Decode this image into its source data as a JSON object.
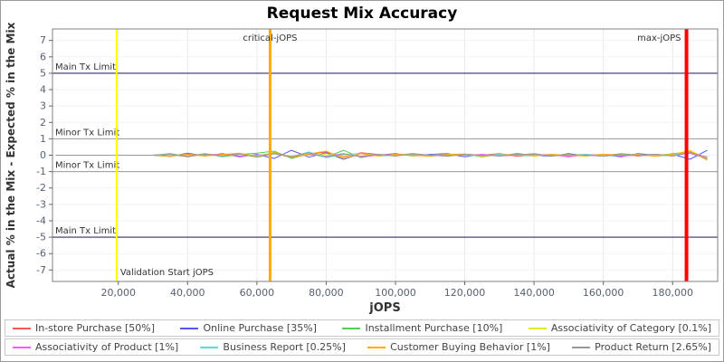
{
  "title": "Request Mix Accuracy",
  "chart_data": {
    "type": "line",
    "title": "Request Mix Accuracy",
    "xlabel": "jOPS",
    "ylabel": "Actual % in the Mix - Expected % in the Mix",
    "xlim": [
      1000,
      193000
    ],
    "ylim": [
      -7.7,
      7.7
    ],
    "x_ticks": [
      20000,
      40000,
      60000,
      80000,
      100000,
      120000,
      140000,
      160000,
      180000
    ],
    "y_ticks": [
      -7,
      -6,
      -5,
      -4,
      -3,
      -2,
      -1,
      0,
      1,
      2,
      3,
      4,
      5,
      6,
      7
    ],
    "grid": "faint",
    "legend_position": "bottom",
    "x": [
      2000,
      6000,
      10000,
      15000,
      20000,
      25000,
      30000,
      35000,
      40000,
      45000,
      50000,
      55000,
      60000,
      65000,
      70000,
      75000,
      80000,
      85000,
      90000,
      95000,
      100000,
      105000,
      110000,
      115000,
      120000,
      125000,
      130000,
      135000,
      140000,
      145000,
      150000,
      155000,
      160000,
      165000,
      170000,
      175000,
      180000,
      185000,
      190000
    ],
    "series": [
      {
        "name": "In-store Purchase [50%]",
        "color": "#ff5555",
        "values": [
          0,
          0,
          0,
          0,
          0,
          0,
          0,
          0.05,
          -0.1,
          0.08,
          0,
          0.1,
          -0.07,
          0.12,
          -0.15,
          0.05,
          0.2,
          -0.1,
          0.15,
          0.05,
          -0.05,
          0.1,
          0,
          -0.05,
          0.06,
          0,
          0.1,
          -0.06,
          0,
          0.05,
          -0.1,
          0.05,
          0,
          0.08,
          -0.05,
          0.05,
          0,
          0.12,
          -0.2
        ]
      },
      {
        "name": "Online Purchase [35%]",
        "color": "#5555ff",
        "values": [
          0,
          0,
          0,
          0,
          0,
          0,
          0,
          -0.08,
          0.12,
          -0.05,
          0.1,
          -0.1,
          0.05,
          -0.2,
          0.3,
          -0.12,
          0.15,
          -0.25,
          0.1,
          0,
          0.1,
          -0.06,
          0.05,
          0.1,
          -0.1,
          0.05,
          -0.05,
          0.1,
          0,
          -0.06,
          0.1,
          -0.05,
          0.05,
          -0.1,
          0.1,
          0,
          0.06,
          -0.25,
          0.3
        ]
      },
      {
        "name": "Installment Purchase [10%]",
        "color": "#55cc55",
        "values": [
          0,
          0,
          0,
          0,
          0,
          0,
          0,
          0.1,
          -0.06,
          0.1,
          -0.1,
          0.05,
          0.12,
          0.25,
          -0.2,
          0.1,
          -0.12,
          0.3,
          -0.15,
          0.05,
          0,
          0.1,
          -0.05,
          0,
          0.06,
          -0.1,
          0.05,
          0,
          0.1,
          -0.05,
          0,
          0.05,
          -0.06,
          0.1,
          0,
          -0.05,
          0.1,
          0.2,
          -0.15
        ]
      },
      {
        "name": "Associativity of Category [0.1%]",
        "color": "#e8e822",
        "values": [
          0,
          0,
          0,
          0,
          0,
          0,
          0,
          0.04,
          0,
          -0.04,
          0,
          0.05,
          0,
          0.08,
          -0.05,
          0,
          0.05,
          -0.04,
          0.1,
          0,
          0.04,
          -0.05,
          0,
          0.05,
          0,
          -0.04,
          0,
          0.04,
          0,
          0,
          0.05,
          -0.04,
          0,
          0.04,
          0,
          0,
          0.05,
          0.3,
          -0.2
        ]
      },
      {
        "name": "Associativity of Product [1%]",
        "color": "#ff55ff",
        "values": [
          0,
          0,
          0,
          0,
          0,
          0,
          0,
          -0.05,
          0.05,
          0,
          0.06,
          -0.05,
          0,
          0.1,
          -0.1,
          0.05,
          -0.06,
          0.1,
          -0.1,
          0,
          0.05,
          0,
          -0.05,
          0.06,
          0,
          0.05,
          -0.05,
          0,
          0.05,
          0,
          -0.06,
          0,
          0.05,
          -0.05,
          0,
          0.05,
          -0.05,
          0.15,
          -0.1
        ]
      },
      {
        "name": "Business Report [0.25%]",
        "color": "#55dddd",
        "values": [
          0,
          0,
          0,
          0,
          0,
          0,
          0,
          0.06,
          -0.05,
          0.05,
          -0.06,
          0.08,
          -0.05,
          0.15,
          -0.1,
          0.2,
          -0.15,
          0.05,
          0.1,
          -0.05,
          0,
          0.06,
          -0.05,
          0.05,
          0,
          -0.05,
          0.06,
          0,
          -0.05,
          0.05,
          0,
          0.05,
          -0.05,
          0,
          0.06,
          -0.05,
          0,
          0.2,
          -0.25
        ]
      },
      {
        "name": "Customer Buying Behavior [1%]",
        "color": "#ffaa00",
        "values": [
          0,
          0,
          0,
          0,
          0,
          0,
          0,
          -0.06,
          0.08,
          -0.05,
          0.05,
          0.12,
          -0.1,
          0.18,
          -0.12,
          0.08,
          0.25,
          -0.2,
          0.1,
          -0.05,
          0.06,
          0,
          -0.06,
          0.05,
          0.08,
          -0.05,
          0,
          0.06,
          -0.05,
          0.05,
          0,
          -0.05,
          0.06,
          0,
          0.05,
          -0.06,
          0.05,
          0.25,
          -0.3
        ]
      },
      {
        "name": "Product Return [2.65%]",
        "color": "#999999",
        "values": [
          0,
          0,
          0,
          0,
          0,
          0,
          0,
          0.05,
          -0.08,
          0.06,
          -0.05,
          0.08,
          -0.12,
          0.1,
          -0.08,
          0.15,
          -0.1,
          0.08,
          -0.06,
          0.05,
          -0.05,
          0.08,
          0,
          -0.06,
          0.05,
          0,
          -0.05,
          0.05,
          0.06,
          -0.05,
          0.05,
          0,
          -0.06,
          0.05,
          0,
          0.06,
          -0.05,
          0.18,
          -0.22
        ]
      }
    ],
    "hlines": [
      {
        "y": 5,
        "label": "Main Tx Limit",
        "color": "#333366",
        "width": 1.2
      },
      {
        "y": 1,
        "label": "Minor Tx Limit",
        "color": "#999999",
        "width": 1
      },
      {
        "y": -1,
        "label": "Minor Tx Limit",
        "color": "#999999",
        "width": 1
      },
      {
        "y": -5,
        "label": "Main Tx Limit",
        "color": "#333366",
        "width": 1.2
      }
    ],
    "vlines": [
      {
        "x": 19500,
        "label": "Validation Start jOPS",
        "color": "#ffff00",
        "width": 2,
        "label_pos": "bottom-right"
      },
      {
        "x": 63800,
        "label": "critical-jOPS",
        "color": "#ffaa00",
        "width": 3,
        "label_pos": "top-center"
      },
      {
        "x": 184000,
        "label": "max-jOPS",
        "color": "#ff0000",
        "width": 4,
        "label_pos": "top-left"
      }
    ]
  },
  "legend": {
    "rows": [
      [
        {
          "label": "In-store Purchase [50%]",
          "color": "#ff5555"
        },
        {
          "label": "Online Purchase [35%]",
          "color": "#5555ff"
        },
        {
          "label": "Installment Purchase [10%]",
          "color": "#55cc55"
        },
        {
          "label": "Associativity of Category [0.1%]",
          "color": "#e8e822"
        }
      ],
      [
        {
          "label": "Associativity of Product [1%]",
          "color": "#ff55ff"
        },
        {
          "label": "Business Report [0.25%]",
          "color": "#55dddd"
        },
        {
          "label": "Customer Buying Behavior [1%]",
          "color": "#ffaa00"
        },
        {
          "label": "Product Return [2.65%]",
          "color": "#999999"
        }
      ]
    ]
  }
}
